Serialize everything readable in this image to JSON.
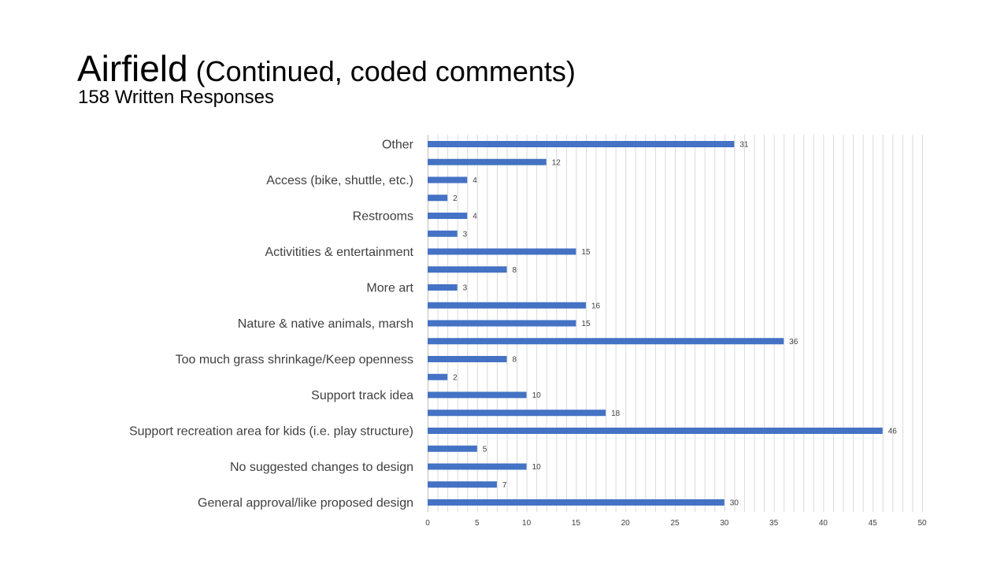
{
  "slide": {
    "title_main": "Airfield",
    "title_sub": " (Continued, coded comments)",
    "subtitle": "158 Written Responses"
  },
  "chart_data": {
    "type": "bar",
    "orientation": "horizontal",
    "categories": [
      "Other",
      "",
      "Access (bike, shuttle, etc.)",
      "",
      "Restrooms",
      "",
      "Activitities & entertainment",
      "",
      "More art",
      "",
      "Nature & native animals, marsh",
      "",
      "Too much grass shrinkage/Keep openness",
      "",
      "Support track idea",
      "",
      "Support recreation area for kids (i.e. play structure)",
      "",
      "No suggested changes to design",
      "",
      "General approval/like proposed design"
    ],
    "values": [
      31,
      12,
      4,
      2,
      4,
      3,
      15,
      8,
      3,
      16,
      15,
      36,
      8,
      2,
      10,
      18,
      46,
      5,
      10,
      7,
      30
    ],
    "xlim": [
      0,
      50
    ],
    "x_ticks": [
      0,
      5,
      10,
      15,
      20,
      25,
      30,
      35,
      40,
      45,
      50
    ],
    "grid": "vertical",
    "bar_color": "#4472C4",
    "grid_color": "#d9d9d9",
    "title": "",
    "xlabel": "",
    "ylabel": ""
  }
}
